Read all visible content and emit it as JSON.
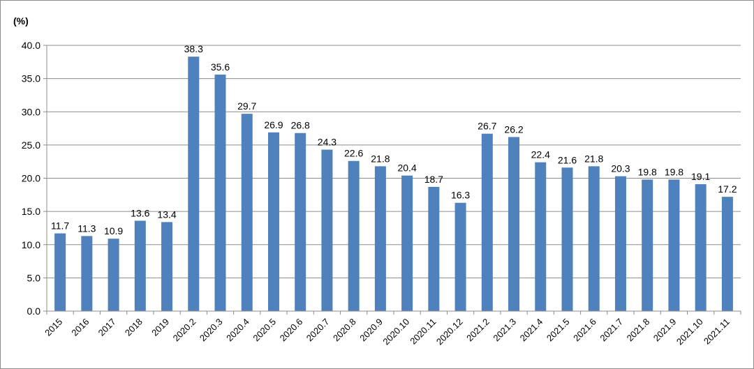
{
  "chart_data": {
    "type": "bar",
    "title": "",
    "xlabel": "",
    "ylabel": "(%)",
    "ylim": [
      0,
      40
    ],
    "yticks": [
      "0.0",
      "5.0",
      "10.0",
      "15.0",
      "20.0",
      "25.0",
      "30.0",
      "35.0",
      "40.0"
    ],
    "grid": true,
    "legend": "none",
    "bar_color": "#4F81BD",
    "categories": [
      "2015",
      "2016",
      "2017",
      "2018",
      "2019",
      "2020.2",
      "2020.3",
      "2020.4",
      "2020.5",
      "2020.6",
      "2020.7",
      "2020.8",
      "2020.9",
      "2020.10",
      "2020.11",
      "2020.12",
      "2021.2",
      "2021.3",
      "2021.4",
      "2021.5",
      "2021.6",
      "2021.7",
      "2021.8",
      "2021.9",
      "2021.10",
      "2021.11"
    ],
    "values": [
      11.7,
      11.3,
      10.9,
      13.6,
      13.4,
      38.3,
      35.6,
      29.7,
      26.9,
      26.8,
      24.3,
      22.6,
      21.8,
      20.4,
      18.7,
      16.3,
      26.7,
      26.2,
      22.4,
      21.6,
      21.8,
      20.3,
      19.8,
      19.8,
      19.1,
      17.2
    ],
    "labels": [
      "11.7",
      "11.3",
      "10.9",
      "13.6",
      "13.4",
      "38.3",
      "35.6",
      "29.7",
      "26.9",
      "26.8",
      "24.3",
      "22.6",
      "21.8",
      "20.4",
      "18.7",
      "16.3",
      "26.7",
      "26.2",
      "22.4",
      "21.6",
      "21.8",
      "20.3",
      "19.8",
      "19.8",
      "19.1",
      "17.2"
    ]
  }
}
